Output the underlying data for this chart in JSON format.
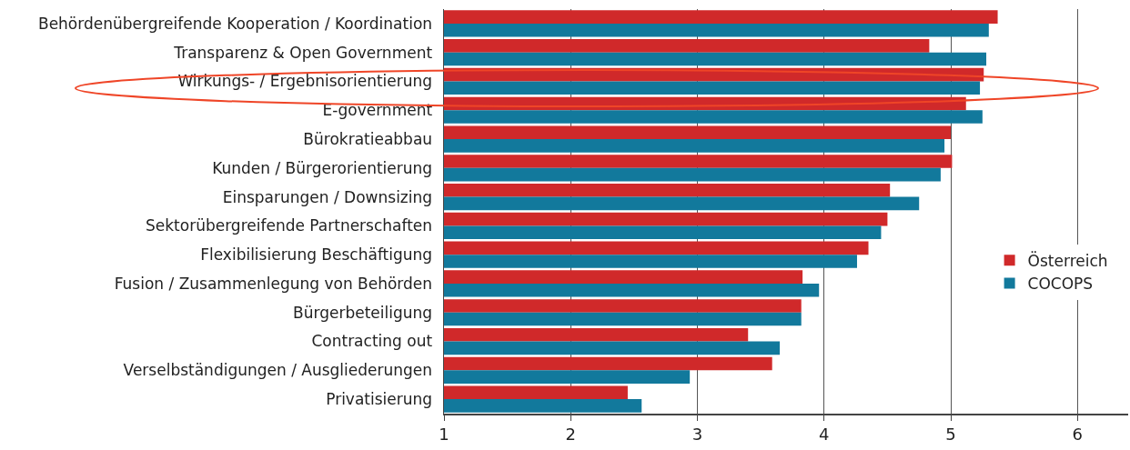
{
  "chart_data": {
    "type": "bar",
    "orientation": "horizontal",
    "categories": [
      "Behördenübergreifende Kooperation / Koordination",
      "Transparenz & Open Government",
      "Wirkungs- / Ergebnisorientierung",
      "E-government",
      "Bürokratieabbau",
      "Kunden / Bürgerorientierung",
      "Einsparungen / Downsizing",
      "Sektorübergreifende Partnerschaften",
      "Flexibilisierung Beschäftigung",
      "Fusion / Zusammenlegung von Behörden",
      "Bürgerbeteiligung",
      "Contracting out",
      "Verselbständigungen / Ausgliederungen",
      "Privatisierung"
    ],
    "series": [
      {
        "name": "Österreich",
        "color": "#d0292a",
        "values": [
          5.37,
          4.83,
          5.26,
          5.12,
          5.0,
          5.01,
          4.52,
          4.5,
          4.35,
          3.83,
          3.82,
          3.4,
          3.59,
          2.45
        ]
      },
      {
        "name": "COCOPS",
        "color": "#12799c",
        "values": [
          5.3,
          5.28,
          5.23,
          5.25,
          4.95,
          4.92,
          4.75,
          4.45,
          4.26,
          3.96,
          3.82,
          3.65,
          2.94,
          2.56
        ]
      }
    ],
    "xlim": [
      1,
      6.4
    ],
    "xticks": [
      1,
      2,
      3,
      4,
      5,
      6
    ],
    "grid": "x",
    "legend": "right"
  }
}
